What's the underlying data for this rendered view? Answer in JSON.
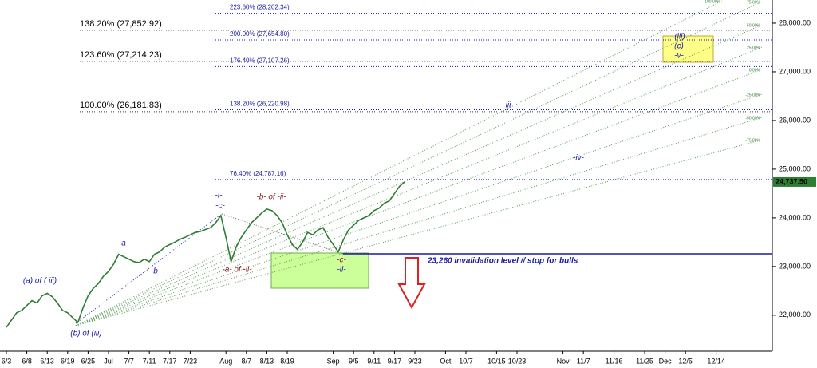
{
  "chart_data": {
    "type": "line",
    "categories": [
      "6/3",
      null,
      null,
      null,
      "6/8",
      null,
      null,
      null,
      "6/13",
      null,
      null,
      null,
      "6/19",
      null,
      null,
      null,
      "6/25",
      null,
      null,
      null,
      "Jul",
      null,
      null,
      null,
      "7/7",
      null,
      null,
      null,
      "7/11",
      null,
      null,
      null,
      "7/17",
      null,
      null,
      null,
      "7/23",
      null,
      null,
      null,
      null,
      null,
      null,
      "Aug",
      null,
      null,
      null,
      "8/7",
      null,
      null,
      null,
      "8/13",
      null,
      null,
      null,
      "8/19",
      null,
      null,
      null,
      null,
      null,
      null,
      null,
      null,
      "Sep",
      null,
      null,
      null,
      "9/5",
      null,
      null,
      null,
      "9/11",
      null,
      null,
      null,
      "9/17",
      null,
      null,
      null,
      "9/23",
      null,
      null,
      null,
      null,
      null,
      "Oct",
      null,
      null,
      null,
      "10/7",
      null,
      null,
      null,
      null,
      null,
      "10/15",
      null,
      null,
      null,
      "10/23",
      null,
      null,
      null,
      null,
      null,
      null,
      null,
      null,
      "Nov",
      null,
      null,
      null,
      "11/7",
      null,
      null,
      null,
      null,
      null,
      "11/16",
      null,
      null,
      null,
      null,
      null,
      "11/25",
      null,
      null,
      null,
      "Dec",
      null,
      null,
      null,
      "12/5",
      null,
      null,
      null,
      null,
      null,
      "12/14",
      null
    ],
    "series": [
      {
        "color": "#2e7d32",
        "values": [
          21750,
          21900,
          22050,
          22100,
          22200,
          22300,
          22250,
          22400,
          22450,
          22380,
          22250,
          22100,
          22050,
          21950,
          21850,
          22150,
          22400,
          22550,
          22650,
          22800,
          22900,
          23050,
          23250,
          23200,
          23150,
          23100,
          23080,
          23150,
          23100,
          23250,
          23300,
          23400,
          23450,
          23500,
          23560,
          23600,
          23650,
          23700,
          23720,
          23760,
          23800,
          23900,
          24050,
          23600,
          23100,
          23400,
          23600,
          23750,
          23900,
          24000,
          24100,
          24180,
          24150,
          24050,
          23900,
          23650,
          23450,
          23350,
          23500,
          23700,
          23650,
          23750,
          23800,
          23600,
          23450,
          23300,
          23550,
          23750,
          23850,
          23950,
          24000,
          24050,
          24150,
          24200,
          24300,
          24350,
          24500,
          24650,
          24737.5,
          null,
          null,
          null,
          null,
          null,
          null,
          null,
          null,
          null,
          null,
          null,
          null,
          null,
          null,
          null,
          null,
          null,
          null,
          null,
          null,
          null,
          null,
          null,
          null,
          null,
          null,
          null,
          null,
          null,
          null,
          null,
          null,
          null,
          null,
          null,
          null,
          null,
          null,
          null,
          null,
          null,
          null,
          null,
          null,
          null,
          null,
          null,
          null,
          null,
          null,
          null,
          null,
          null,
          null,
          null,
          null,
          null,
          null,
          null,
          null,
          null,
          null
        ]
      }
    ],
    "ylim": [
      21260,
      28475
    ],
    "yticks": [
      {
        "value": 22000,
        "label": "22,000.00"
      },
      {
        "value": 23000,
        "label": "23,000.00"
      },
      {
        "value": 24000,
        "label": "24,000.00"
      },
      {
        "value": 25000,
        "label": "25,000.00"
      },
      {
        "value": 26000,
        "label": "26,000.00"
      },
      {
        "value": 27000,
        "label": "27,000.00"
      },
      {
        "value": 28000,
        "label": "28,000.00"
      }
    ],
    "last_price": {
      "value": 24737.5,
      "label": "24,737.50",
      "color": "#2e7d32"
    },
    "fib_levels_left": [
      {
        "value": 27852.92,
        "label": "138.20% (27,852.92)"
      },
      {
        "value": 27214.23,
        "label": "123.60% (27,214.23)"
      },
      {
        "value": 26181.83,
        "label": "100.00% (26,181.83)"
      }
    ],
    "fib_levels_right": [
      {
        "value": 28202.34,
        "label": "223.60% (28,202.34)"
      },
      {
        "value": 27654.8,
        "label": "200.00% (27,654.80)"
      },
      {
        "value": 27107.26,
        "label": "176.40% (27,107.26)"
      },
      {
        "value": 26220.98,
        "label": "138.20% (26,220.98)"
      },
      {
        "value": 24787.16,
        "label": "76.40% (24,787.16)"
      }
    ],
    "invalidation": {
      "value": 23260,
      "label": "23,260 invalidation level // stop for bulls",
      "color": "#1a1aa6"
    },
    "fan_labels": [
      "100.00%",
      "75.00%",
      "50.00%",
      "25.00%",
      "0.00%",
      "-25.00%",
      "-50.00%",
      "-75.00%"
    ],
    "wave_labels": [
      "(a) of ( iii)",
      "(b) of (iii)",
      "-a-",
      "-b-",
      "-i-",
      "-c-",
      "-a- of -ii-",
      "-b- of -ii-",
      "-c-",
      "-ii-",
      "-iii-",
      "-iv-",
      "(iii)",
      "(c)",
      "-v-"
    ]
  }
}
